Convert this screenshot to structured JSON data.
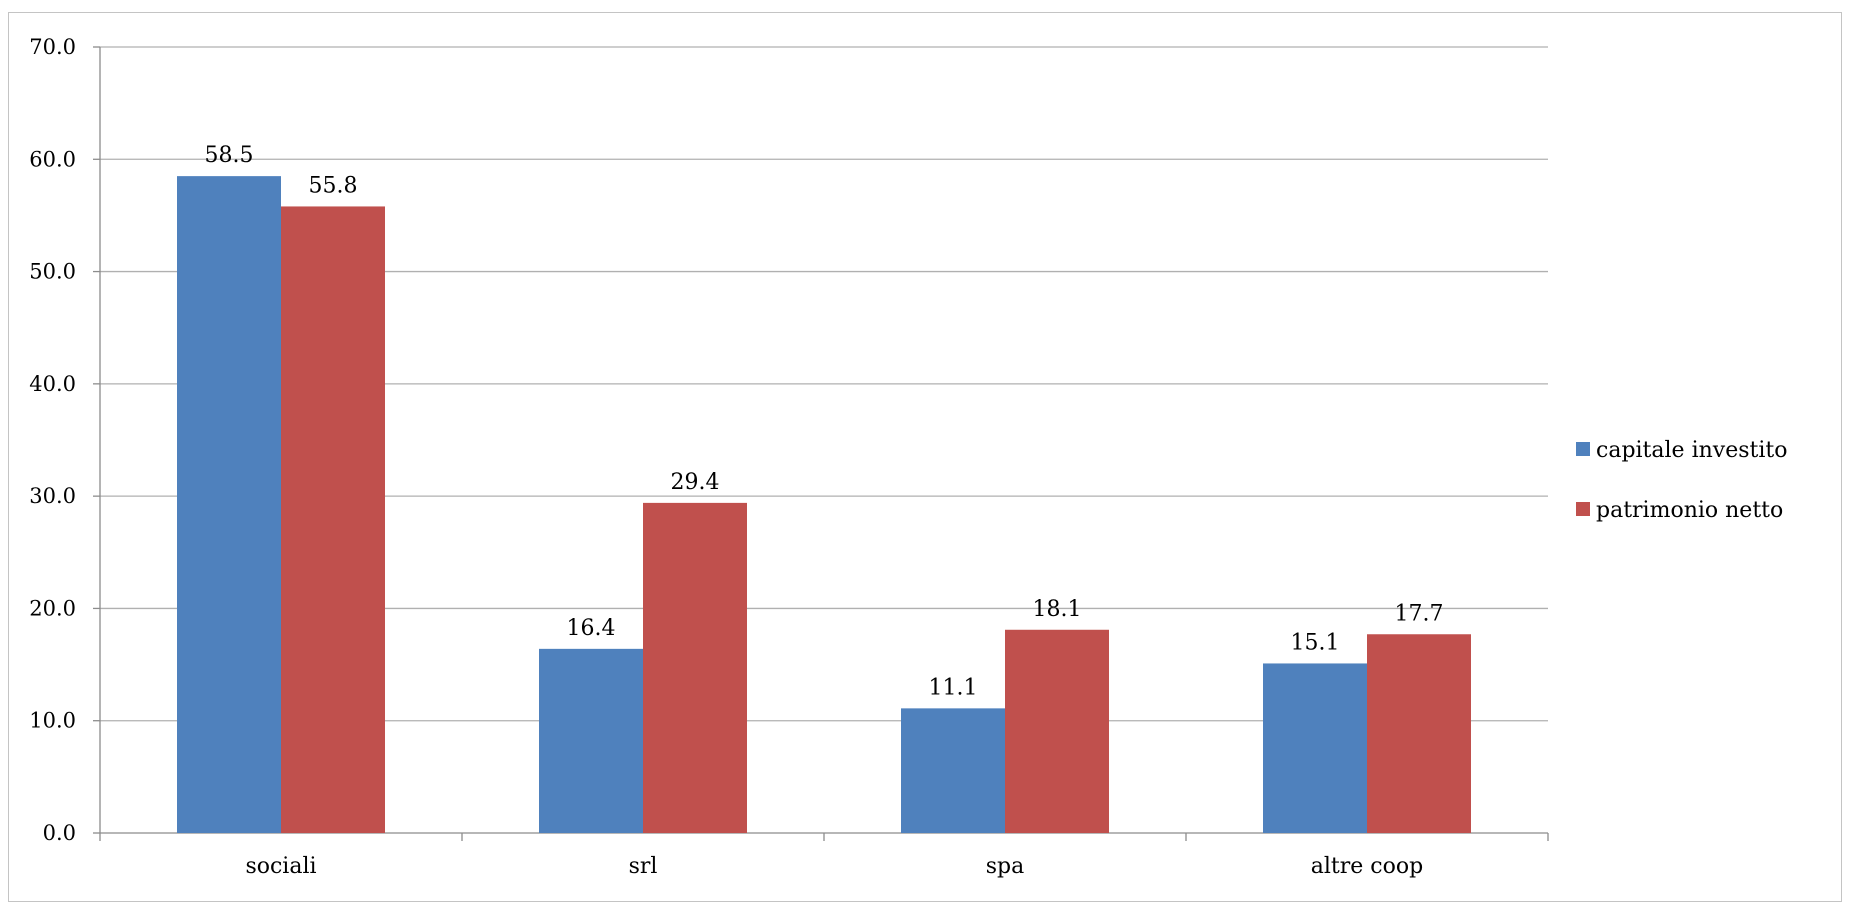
{
  "chart_data": {
    "type": "bar",
    "categories": [
      "sociali",
      "srl",
      "spa",
      "altre coop"
    ],
    "series": [
      {
        "name": "capitale investito",
        "color": "#4f81bd",
        "values": [
          58.5,
          16.4,
          11.1,
          15.1
        ]
      },
      {
        "name": "patrimonio netto",
        "color": "#c0504d",
        "values": [
          55.8,
          29.4,
          18.1,
          17.7
        ]
      }
    ],
    "title": "",
    "xlabel": "",
    "ylabel": "",
    "ylim": [
      0,
      70
    ],
    "yticks": [
      "0.0",
      "10.0",
      "20.0",
      "30.0",
      "40.0",
      "50.0",
      "60.0",
      "70.0"
    ],
    "grid": true,
    "legend_position": "right",
    "data_labels": true
  }
}
